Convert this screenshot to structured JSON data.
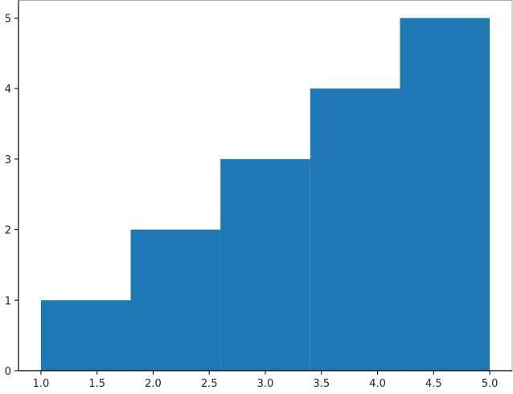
{
  "chart_data": {
    "type": "bar",
    "subtype": "histogram",
    "bin_edges": [
      1.0,
      1.8,
      2.6,
      3.4,
      4.2,
      5.0
    ],
    "values": [
      1,
      2,
      3,
      4,
      5
    ],
    "xlim": [
      0.8,
      5.2
    ],
    "ylim": [
      0,
      5.25
    ],
    "xticks": [
      "1.0",
      "1.5",
      "2.0",
      "2.5",
      "3.0",
      "3.5",
      "4.0",
      "4.5",
      "5.0"
    ],
    "yticks": [
      "0",
      "1",
      "2",
      "3",
      "4",
      "5"
    ],
    "title": "",
    "xlabel": "",
    "ylabel": "",
    "grid": false,
    "color": "#1f77b4"
  }
}
